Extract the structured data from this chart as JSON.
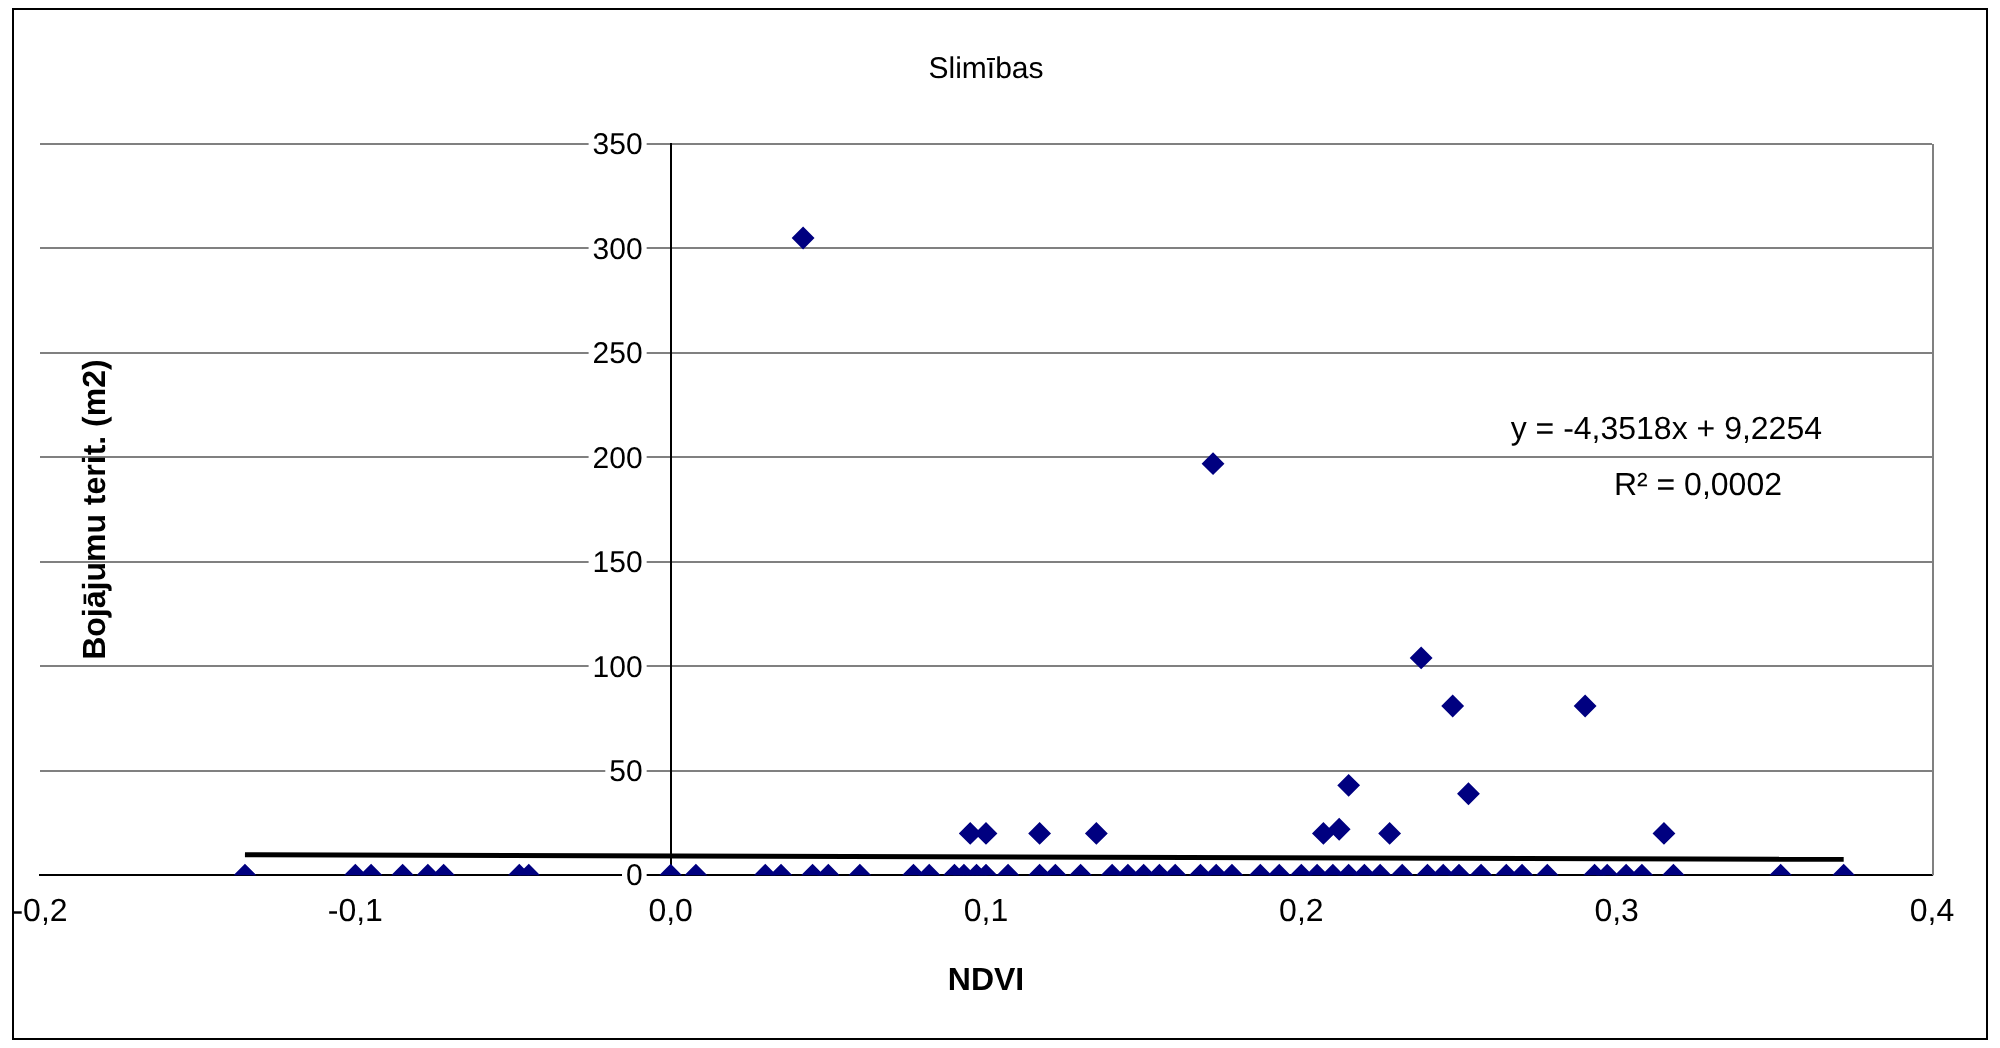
{
  "chart_data": {
    "type": "scatter",
    "title": "Slimības",
    "xlabel": "NDVI",
    "ylabel": "Bojājumu terit. (m2)",
    "xlim": [
      -0.2,
      0.4
    ],
    "xticks": [
      {
        "value": -0.2,
        "label": "-0,2"
      },
      {
        "value": -0.1,
        "label": "-0,1"
      },
      {
        "value": 0,
        "label": "0,0"
      },
      {
        "value": 0.1,
        "label": "0,1"
      },
      {
        "value": 0.2,
        "label": "0,2"
      },
      {
        "value": 0.3,
        "label": "0,3"
      },
      {
        "value": 0.4,
        "label": "0,4"
      }
    ],
    "ylim": [
      0,
      350
    ],
    "yticks": [
      0,
      50,
      100,
      150,
      200,
      250,
      300,
      350
    ],
    "grid": "y",
    "legend": false,
    "marker": "diamond",
    "series": [
      {
        "type": "scatter",
        "color": "#000080",
        "x": [
          -0.135,
          -0.1,
          -0.095,
          -0.085,
          -0.077,
          -0.072,
          -0.048,
          -0.045,
          0.0,
          0.008,
          0.03,
          0.035,
          0.045,
          0.05,
          0.06,
          0.077,
          0.082,
          0.09,
          0.093,
          0.097,
          0.1,
          0.107,
          0.117,
          0.122,
          0.13,
          0.14,
          0.145,
          0.15,
          0.155,
          0.16,
          0.168,
          0.173,
          0.178,
          0.187,
          0.193,
          0.2,
          0.205,
          0.21,
          0.215,
          0.22,
          0.225,
          0.232,
          0.24,
          0.245,
          0.25,
          0.257,
          0.265,
          0.27,
          0.278,
          0.293,
          0.297,
          0.303,
          0.308,
          0.318,
          0.352,
          0.372,
          0.042,
          0.172,
          0.095,
          0.1,
          0.117,
          0.135,
          0.207,
          0.212,
          0.215,
          0.228,
          0.238,
          0.248,
          0.253,
          0.29,
          0.315
        ],
        "values": [
          0,
          0,
          0,
          0,
          0,
          0,
          0,
          0,
          0,
          0,
          0,
          0,
          0,
          0,
          0,
          0,
          0,
          0,
          0,
          0,
          0,
          0,
          0,
          0,
          0,
          0,
          0,
          0,
          0,
          0,
          0,
          0,
          0,
          0,
          0,
          0,
          0,
          0,
          0,
          0,
          0,
          0,
          0,
          0,
          0,
          0,
          0,
          0,
          0,
          0,
          0,
          0,
          0,
          0,
          0,
          0,
          305,
          197,
          20,
          20,
          20,
          20,
          20,
          22,
          43,
          20,
          104,
          81,
          39,
          81,
          20
        ]
      },
      {
        "type": "line",
        "color": "#000000",
        "marker": "none",
        "x": [
          -0.135,
          0.372
        ],
        "values": [
          9.8,
          7.6
        ]
      }
    ],
    "annotations": [
      "y = -4,3518x + 9,2254",
      "R² = 0,0002"
    ]
  }
}
